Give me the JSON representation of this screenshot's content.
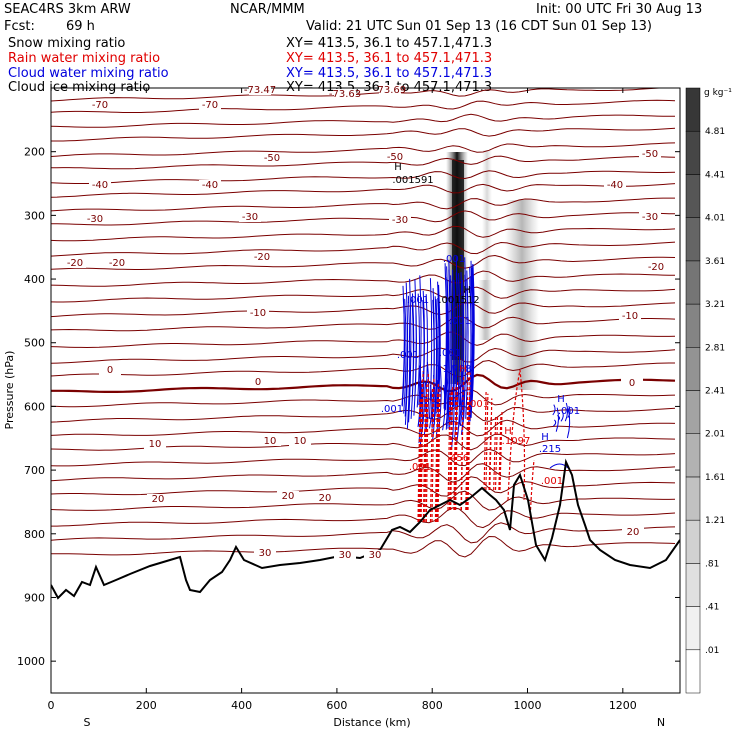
{
  "header": {
    "model": "SEAC4RS  3km ARW",
    "org": "NCAR/MMM",
    "init": "Init: 00 UTC Fri 30 Aug 13",
    "fcst_label": "Fcst:",
    "fcst_value": "69 h",
    "valid": "Valid: 21 UTC Sun 01 Sep 13 (16 CDT Sun 01 Sep 13)"
  },
  "fields": [
    {
      "name": "Snow mixing ratio",
      "xy": "XY= 413.5, 36.1 to 457.1,471.3",
      "color": "#000000"
    },
    {
      "name": "Rain water mixing ratio",
      "xy": "XY= 413.5, 36.1 to 457.1,471.3",
      "color": "#e00000"
    },
    {
      "name": "Cloud water mixing ratio",
      "xy": "XY= 413.5, 36.1 to 457.1,471.3",
      "color": "#0000dd"
    },
    {
      "name": "Cloud ice mixing ratio",
      "xy": "XY= 413.5, 36.1 to 457.1,471.3",
      "color": "#000000"
    }
  ],
  "chart_data": {
    "type": "cross-section",
    "xlabel": "Distance (km)",
    "ylabel": "Pressure (hPa)",
    "xlim": [
      0,
      1320
    ],
    "ylim": [
      1050,
      100
    ],
    "xticks": [
      0,
      200,
      400,
      600,
      800,
      1000,
      1200
    ],
    "yticks": [
      200,
      300,
      400,
      500,
      600,
      700,
      800,
      900,
      1000
    ],
    "x_end_labels": {
      "left": "S",
      "right": "N"
    },
    "colorbar_unit": "g kg⁻¹",
    "colorbar_levels": [
      ".01",
      ".41",
      ".81",
      "1.21",
      "1.61",
      "2.01",
      "2.41",
      "2.81",
      "3.21",
      "3.61",
      "4.01",
      "4.41",
      "4.81"
    ],
    "temperature_contour_color": "#7a0000",
    "temperature_contour_labels": [
      "-70",
      "-70",
      "-73.47",
      "-73.63",
      "-73.69",
      "-50",
      "-50",
      "-50",
      "-40",
      "-40",
      "-40",
      "-30",
      "-30",
      "-30",
      "-30",
      "-20",
      "-20",
      "-20",
      "-20",
      "-10",
      "-10",
      "0",
      "0",
      "0",
      "10",
      "10",
      "10",
      "20",
      "20",
      "20",
      "20",
      "30",
      "30",
      "30"
    ],
    "field_annotations": [
      {
        "text": "H",
        "color": "#000000"
      },
      {
        "text": ".001591",
        "color": "#000000"
      },
      {
        "text": "H",
        "color": "#000000"
      },
      {
        "text": ".001512",
        "color": "#000000"
      },
      {
        "text": ".001",
        "color": "#0000dd"
      },
      {
        "text": ".001",
        "color": "#0000dd"
      },
      {
        "text": ".001",
        "color": "#0000dd"
      },
      {
        "text": ".001",
        "color": "#0000dd"
      },
      {
        "text": ".001",
        "color": "#0000dd"
      },
      {
        "text": ".001",
        "color": "#0000dd"
      },
      {
        "text": "1.788",
        "color": "#0000dd"
      },
      {
        "text": "H",
        "color": "#0000dd"
      },
      {
        "text": ".215",
        "color": "#0000dd"
      },
      {
        "text": "H",
        "color": "#0000dd"
      },
      {
        "text": ".001",
        "color": "#0000dd"
      },
      {
        "text": ".001",
        "color": "#e00000"
      },
      {
        "text": ".001",
        "color": "#e00000"
      },
      {
        "text": "H",
        "color": "#e00000"
      },
      {
        "text": ".1097",
        "color": "#e00000"
      },
      {
        "text": ".001",
        "color": "#e00000"
      },
      {
        "text": ".456",
        "color": "#e00000"
      },
      {
        "text": "H",
        "color": "#e00000"
      }
    ]
  }
}
